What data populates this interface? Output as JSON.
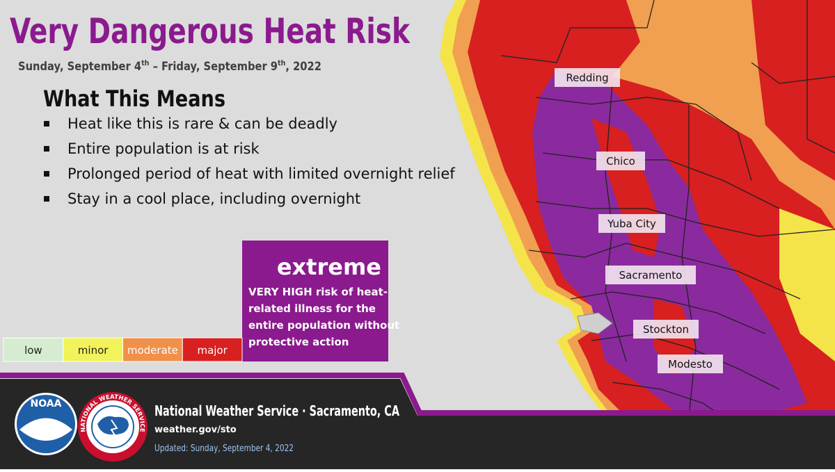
{
  "header": {
    "title": "Very Dangerous Heat Risk",
    "subtitle": [
      "Sunday, September 4",
      "th",
      " – Friday, September 9",
      "th",
      ", 2022"
    ]
  },
  "meaning": {
    "heading": "What This Means",
    "bullets": [
      "Heat like this is rare & can be deadly",
      "Entire population is at risk",
      "Prolonged period of heat with limited overnight relief",
      "Stay in a cool place, including overnight"
    ]
  },
  "legend": {
    "levels": [
      "low",
      "minor",
      "moderate",
      "major"
    ],
    "current": {
      "level": "extreme",
      "description": [
        "VERY HIGH risk of heat-",
        "related illness for the",
        "entire population without",
        "protective action"
      ]
    }
  },
  "map": {
    "cities": [
      "Redding",
      "Chico",
      "Yuba City",
      "Sacramento",
      "Stockton",
      "Modesto"
    ]
  },
  "footer": {
    "office": "National Weather Service · Sacramento, CA",
    "url": "weather.gov/sto",
    "updated": "Updated: Sunday, September 4, 2022",
    "logos": {
      "noaa": "NOAA",
      "nws": "NATIONAL WEATHER SERVICE"
    }
  }
}
